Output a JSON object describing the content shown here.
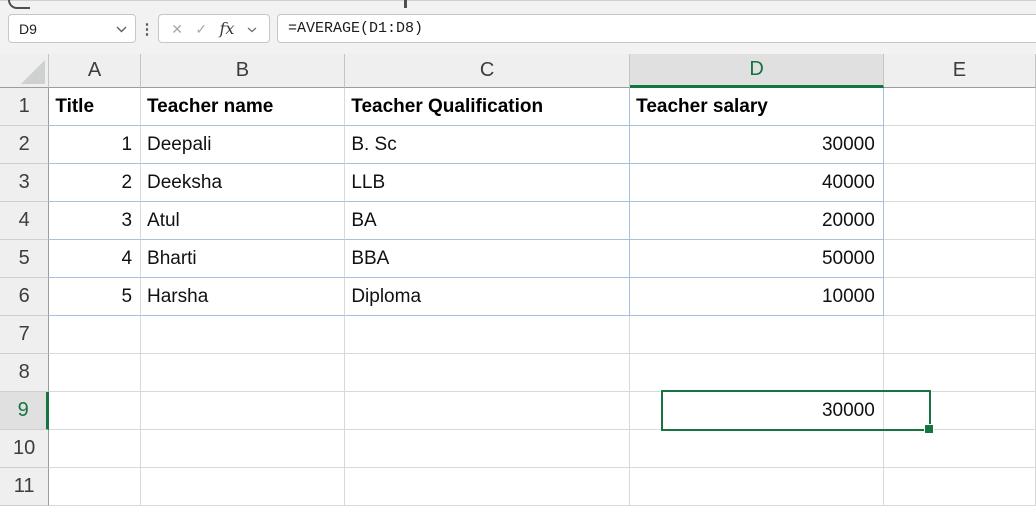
{
  "formula_bar": {
    "name_box_value": "D9",
    "cancel_label": "✕",
    "enter_label": "✓",
    "fx_label": "fx",
    "formula": "=AVERAGE(D1:D8)"
  },
  "sheet": {
    "column_headers": [
      "A",
      "B",
      "C",
      "D",
      "E"
    ],
    "row_headers": [
      1,
      2,
      3,
      4,
      5,
      6,
      7,
      8,
      9,
      10,
      11
    ],
    "selected_cell": "D9",
    "selected_column": "D",
    "selected_row": 9,
    "cells": {
      "A1": "Title",
      "B1": "Teacher name",
      "C1": "Teacher Qualification",
      "D1": "Teacher salary",
      "A2": "1",
      "B2": "Deepali",
      "C2": "B. Sc",
      "D2": "30000",
      "A3": "2",
      "B3": "Deeksha",
      "C3": "LLB",
      "D3": "40000",
      "A4": "3",
      "B4": "Atul",
      "C4": "BA",
      "D4": "20000",
      "A5": "4",
      "B5": "Bharti",
      "C5": "BBA",
      "D5": "50000",
      "A6": "5",
      "B6": "Harsha",
      "C6": "Diploma",
      "D6": "10000",
      "D9": "30000"
    },
    "bold_rows": [
      1
    ],
    "table_region": {
      "col_start": "A",
      "col_end": "D",
      "row_start": 1,
      "row_end": 6
    }
  },
  "colors": {
    "accent_green": "#15743F",
    "table_border_blue": "#A6C1DD",
    "gridline": "#D9D9D9",
    "header_bg": "#EFEFEF",
    "selected_header_bg": "#E0E0E0"
  }
}
